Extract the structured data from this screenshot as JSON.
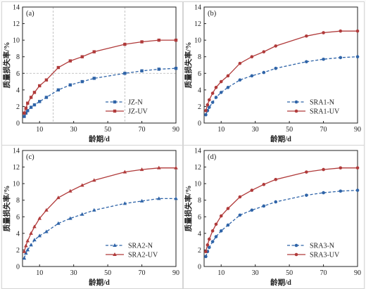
{
  "chart_data": [
    {
      "type": "line",
      "panel_label": "(a)",
      "xlabel": "龄期/d",
      "ylabel": "质量损失率/%",
      "xlim": [
        0,
        90
      ],
      "ylim": [
        0,
        14
      ],
      "xticks": [
        10,
        30,
        50,
        70,
        90
      ],
      "yticks": [
        0,
        2,
        4,
        6,
        8,
        10,
        12,
        14
      ],
      "grid": false,
      "legend_position": "bottom-right",
      "reference_lines": {
        "vertical_x": [
          18,
          60
        ],
        "horizontal_y": [
          6
        ]
      },
      "series": [
        {
          "name": "JZ-N",
          "color": "#2f64a8",
          "marker": "square",
          "line_style": "dashed",
          "x": [
            1,
            2,
            3,
            5,
            7,
            10,
            14,
            21,
            28,
            35,
            42,
            60,
            70,
            80,
            90
          ],
          "y": [
            0.8,
            1.2,
            1.5,
            1.9,
            2.2,
            2.6,
            3.1,
            4.0,
            4.6,
            5.0,
            5.4,
            6.0,
            6.3,
            6.5,
            6.6
          ]
        },
        {
          "name": "JZ-UV",
          "color": "#b03a3a",
          "marker": "square",
          "line_style": "solid",
          "x": [
            1,
            2,
            3,
            5,
            7,
            10,
            14,
            21,
            28,
            35,
            42,
            60,
            70,
            80,
            90
          ],
          "y": [
            1.2,
            1.8,
            2.4,
            3.1,
            3.7,
            4.5,
            5.2,
            6.7,
            7.5,
            8.0,
            8.6,
            9.5,
            9.8,
            10.0,
            10.0
          ]
        }
      ]
    },
    {
      "type": "line",
      "panel_label": "(b)",
      "xlabel": "龄期/d",
      "ylabel": "质量损失率/%",
      "xlim": [
        0,
        90
      ],
      "ylim": [
        0,
        14
      ],
      "xticks": [
        10,
        30,
        50,
        70,
        90
      ],
      "yticks": [
        0,
        2,
        4,
        6,
        8,
        10,
        12,
        14
      ],
      "grid": false,
      "legend_position": "bottom-right",
      "series": [
        {
          "name": "SRA1-N",
          "color": "#2f64a8",
          "marker": "circle",
          "line_style": "dashed",
          "x": [
            1,
            2,
            3,
            5,
            7,
            10,
            14,
            21,
            28,
            35,
            42,
            60,
            70,
            80,
            90
          ],
          "y": [
            1.0,
            1.5,
            1.9,
            2.5,
            3.1,
            3.7,
            4.3,
            5.2,
            5.7,
            6.1,
            6.6,
            7.4,
            7.7,
            7.9,
            8.0
          ]
        },
        {
          "name": "SRA1-UV",
          "color": "#b03a3a",
          "marker": "circle",
          "line_style": "solid",
          "x": [
            1,
            2,
            3,
            5,
            7,
            10,
            14,
            21,
            28,
            35,
            42,
            60,
            70,
            80,
            90
          ],
          "y": [
            1.5,
            2.2,
            2.8,
            3.6,
            4.3,
            5.0,
            5.7,
            7.2,
            8.0,
            8.6,
            9.3,
            10.5,
            10.9,
            11.1,
            11.1
          ]
        }
      ]
    },
    {
      "type": "line",
      "panel_label": "(c)",
      "xlabel": "龄期/d",
      "ylabel": "质量损失率/%",
      "xlim": [
        0,
        90
      ],
      "ylim": [
        0,
        14
      ],
      "xticks": [
        10,
        30,
        50,
        70,
        90
      ],
      "yticks": [
        0,
        2,
        4,
        6,
        8,
        10,
        12,
        14
      ],
      "grid": false,
      "legend_position": "bottom-right",
      "series": [
        {
          "name": "SRA2-N",
          "color": "#2f64a8",
          "marker": "triangle",
          "line_style": "dashed",
          "x": [
            1,
            2,
            3,
            5,
            7,
            10,
            14,
            21,
            28,
            35,
            42,
            60,
            70,
            80,
            90
          ],
          "y": [
            1.0,
            1.6,
            2.0,
            2.6,
            3.2,
            3.7,
            4.2,
            5.2,
            5.8,
            6.3,
            6.8,
            7.6,
            7.9,
            8.2,
            8.2
          ]
        },
        {
          "name": "SRA2-UV",
          "color": "#b03a3a",
          "marker": "triangle",
          "line_style": "solid",
          "x": [
            1,
            2,
            3,
            5,
            7,
            10,
            14,
            21,
            28,
            35,
            42,
            60,
            70,
            80,
            90
          ],
          "y": [
            1.8,
            2.5,
            3.1,
            4.0,
            4.8,
            5.8,
            6.8,
            8.3,
            9.1,
            9.8,
            10.4,
            11.4,
            11.7,
            11.9,
            11.9
          ]
        }
      ]
    },
    {
      "type": "line",
      "panel_label": "(d)",
      "xlabel": "龄期/d",
      "ylabel": "质量损失率/%",
      "xlim": [
        0,
        90
      ],
      "ylim": [
        0,
        14
      ],
      "xticks": [
        10,
        30,
        50,
        70,
        90
      ],
      "yticks": [
        0,
        2,
        4,
        6,
        8,
        10,
        12,
        14
      ],
      "grid": false,
      "legend_position": "bottom-right",
      "series": [
        {
          "name": "SRA3-N",
          "color": "#2f64a8",
          "marker": "circle",
          "line_style": "dashed",
          "x": [
            1,
            2,
            3,
            5,
            7,
            10,
            14,
            21,
            28,
            35,
            42,
            60,
            70,
            80,
            90
          ],
          "y": [
            1.2,
            1.8,
            2.3,
            3.0,
            3.6,
            4.3,
            5.0,
            6.2,
            6.8,
            7.3,
            7.8,
            8.6,
            8.9,
            9.1,
            9.2
          ]
        },
        {
          "name": "SRA3-UV",
          "color": "#b03a3a",
          "marker": "circle",
          "line_style": "solid",
          "x": [
            1,
            2,
            3,
            5,
            7,
            10,
            14,
            21,
            28,
            35,
            42,
            60,
            70,
            80,
            90
          ],
          "y": [
            1.8,
            2.6,
            3.3,
            4.3,
            5.1,
            6.1,
            7.0,
            8.4,
            9.2,
            9.9,
            10.5,
            11.4,
            11.7,
            11.9,
            11.9
          ]
        }
      ]
    }
  ]
}
